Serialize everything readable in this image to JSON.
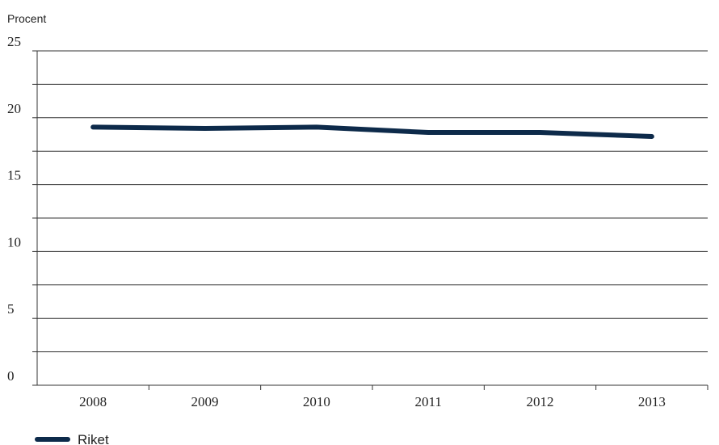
{
  "chart_data": {
    "type": "line",
    "title": "",
    "ylabel": "Procent",
    "xlabel": "",
    "categories": [
      "2008",
      "2009",
      "2010",
      "2011",
      "2012",
      "2013"
    ],
    "ylim": [
      0,
      25
    ],
    "yticks": [
      "0",
      "5",
      "10",
      "15",
      "20",
      "25"
    ],
    "series": [
      {
        "name": "Riket",
        "values": [
          19.3,
          19.2,
          19.3,
          18.9,
          18.9,
          18.6
        ],
        "color": "#0d2a4a"
      }
    ],
    "grid": true,
    "legend": "bottom-left",
    "colors": {
      "line": "#0d2a4a",
      "grid": "#333333",
      "axis": "#333333"
    }
  }
}
